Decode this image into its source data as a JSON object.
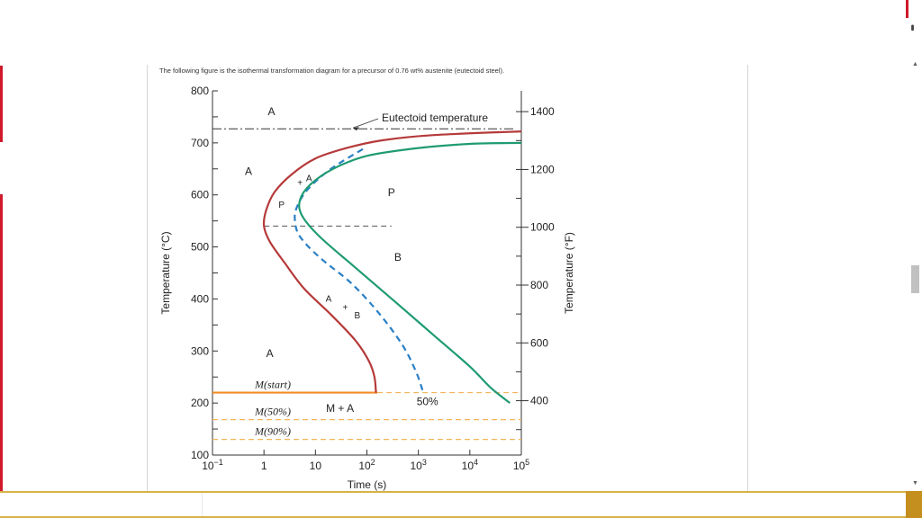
{
  "caption": "The following figure is the isothermal transformation diagram for a precursor of 0.76 wt% austenite (eutectoid steel).",
  "colors": {
    "red_curve": "#b53a3a",
    "green_curve": "#1f9b74",
    "blue_dashed": "#2a7fc4",
    "martensite": "#f28c28",
    "martensite_dashed": "#f4b55a",
    "sidebar_red": "#d0192b",
    "bottom_bar": "#d7b24a"
  },
  "chart_data": {
    "type": "line",
    "x_scale": "log",
    "xlim": [
      0.1,
      100000
    ],
    "ylim": [
      100,
      800
    ],
    "xlabel": "Time (s)",
    "ylabel": "Temperature (°C)",
    "y2label": "Temperature (°F)",
    "x_ticks": [
      {
        "value": 0.1,
        "base": "10",
        "exp": "−1"
      },
      {
        "value": 1,
        "base": "1",
        "exp": ""
      },
      {
        "value": 10,
        "base": "10",
        "exp": ""
      },
      {
        "value": 100,
        "base": "10",
        "exp": "2"
      },
      {
        "value": 1000,
        "base": "10",
        "exp": "3"
      },
      {
        "value": 10000,
        "base": "10",
        "exp": "4"
      },
      {
        "value": 100000,
        "base": "10",
        "exp": "5"
      }
    ],
    "y_ticks": [
      100,
      200,
      300,
      400,
      500,
      600,
      700,
      800
    ],
    "y2_ticks": [
      {
        "value": 400,
        "label": "400"
      },
      {
        "value": 600,
        "label": "600"
      },
      {
        "value": 800,
        "label": "800"
      },
      {
        "value": 1000,
        "label": "1000"
      },
      {
        "value": 1200,
        "label": "1200"
      },
      {
        "value": 1400,
        "label": "1400"
      }
    ],
    "eutectoid_temperature": 727,
    "eutectoid_label": "Eutectoid temperature",
    "series": [
      {
        "id": "start",
        "style": "solid",
        "color": "#b53a3a",
        "points": [
          [
            150,
            220
          ],
          [
            140,
            250
          ],
          [
            110,
            280
          ],
          [
            60,
            320
          ],
          [
            20,
            370
          ],
          [
            6,
            420
          ],
          [
            2.5,
            470
          ],
          [
            1.3,
            510
          ],
          [
            1.0,
            540
          ],
          [
            1.1,
            570
          ],
          [
            1.6,
            605
          ],
          [
            3.5,
            640
          ],
          [
            10,
            670
          ],
          [
            40,
            690
          ],
          [
            200,
            705
          ],
          [
            2000,
            715
          ],
          [
            100000,
            722
          ]
        ]
      },
      {
        "id": "fifty",
        "style": "dashed",
        "color": "#2a7fc4",
        "points": [
          [
            1200,
            225
          ],
          [
            900,
            260
          ],
          [
            500,
            310
          ],
          [
            180,
            370
          ],
          [
            50,
            430
          ],
          [
            12,
            480
          ],
          [
            5,
            520
          ],
          [
            4,
            550
          ],
          [
            4.3,
            575
          ],
          [
            7,
            610
          ],
          [
            20,
            650
          ],
          [
            90,
            690
          ]
        ]
      },
      {
        "id": "finish",
        "style": "solid",
        "color": "#1f9b74",
        "points": [
          [
            60000,
            200
          ],
          [
            25000,
            230
          ],
          [
            10000,
            270
          ],
          [
            2000,
            330
          ],
          [
            400,
            390
          ],
          [
            60,
            460
          ],
          [
            12,
            520
          ],
          [
            5.5,
            560
          ],
          [
            5,
            590
          ],
          [
            8,
            620
          ],
          [
            22,
            650
          ],
          [
            100,
            675
          ],
          [
            1000,
            690
          ],
          [
            10000,
            698
          ],
          [
            100000,
            700
          ]
        ]
      }
    ],
    "horizontal_lines": [
      {
        "id": "ms",
        "y": 220,
        "x_from": 0.1,
        "x_to": 160,
        "style": "solid",
        "label": "M(start)"
      },
      {
        "id": "ms-ext",
        "y": 220,
        "x_from": 160,
        "x_to": 100000,
        "style": "dashed"
      },
      {
        "id": "m50",
        "y": 168,
        "x_from": 0.1,
        "x_to": 100000,
        "style": "dashed",
        "label": "M(50%)"
      },
      {
        "id": "m90",
        "y": 130,
        "x_from": 0.1,
        "x_to": 100000,
        "style": "dashed",
        "label": "M(90%)"
      },
      {
        "id": "nose",
        "y": 540,
        "x_from": 1,
        "x_to": 300,
        "style": "dashed-gray"
      }
    ],
    "annotations": [
      {
        "text": "A",
        "x": 1.4,
        "y": 760
      },
      {
        "text": "A",
        "x": 0.5,
        "y": 645
      },
      {
        "text": "P",
        "x": 300,
        "y": 605
      },
      {
        "text": "B",
        "x": 400,
        "y": 480
      },
      {
        "text": "A",
        "x": 1.3,
        "y": 295
      },
      {
        "text": "M + A",
        "x": 30,
        "y": 190
      },
      {
        "text": "50%",
        "x": 1500,
        "y": 203
      }
    ],
    "small_labels": [
      {
        "text": "+",
        "x": 5.0,
        "y": 625
      },
      {
        "text": "A",
        "x": 7.5,
        "y": 633
      },
      {
        "text": "P",
        "x": 2.2,
        "y": 582
      },
      {
        "text": "A",
        "x": 18,
        "y": 402
      },
      {
        "text": "+",
        "x": 38,
        "y": 385
      },
      {
        "text": "B",
        "x": 65,
        "y": 370
      }
    ]
  }
}
